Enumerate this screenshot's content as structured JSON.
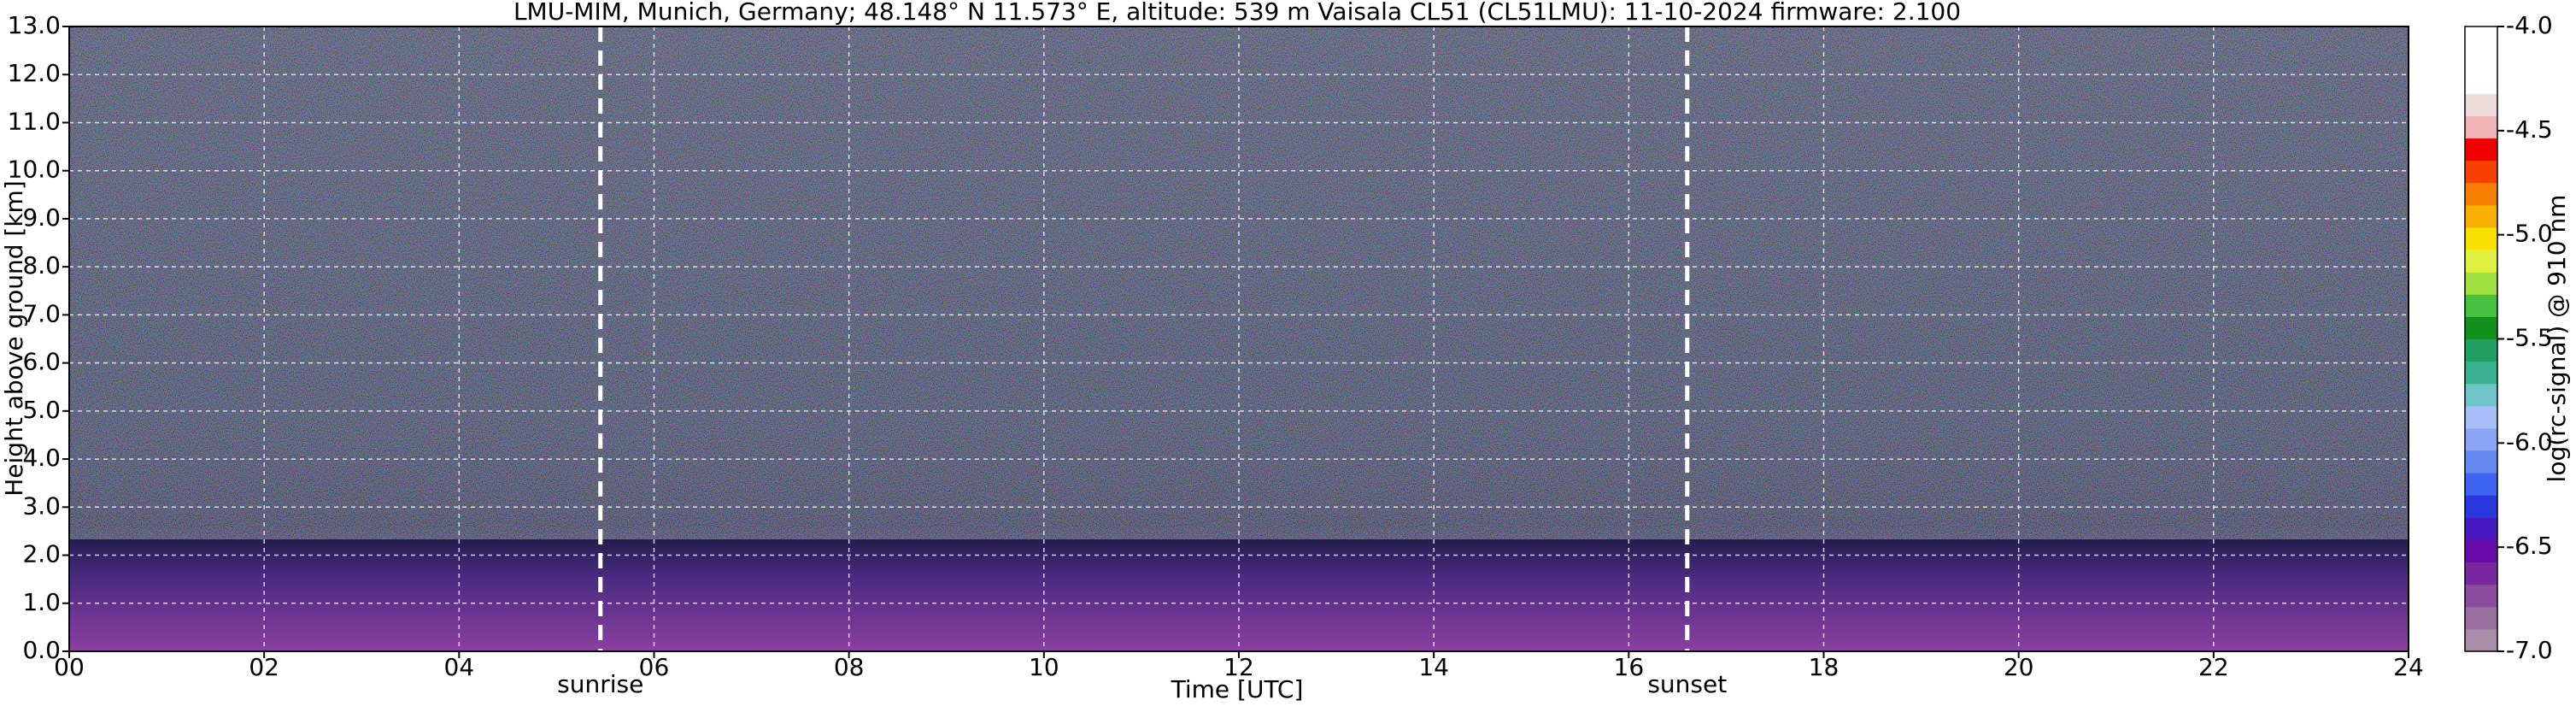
{
  "chart_data": {
    "type": "heatmap",
    "title": "LMU-MIM, Munich, Germany; 48.148° N 11.573° E, altitude: 539 m    Vaisala CL51 (CL51LMU): 11-10-2024    firmware: 2.100",
    "x_label": "Time [UTC]",
    "y_label": "Height above ground [km]",
    "xlim": [
      0,
      24
    ],
    "xticks": [
      {
        "value": 0,
        "label": "00"
      },
      {
        "value": 2,
        "label": "02"
      },
      {
        "value": 4,
        "label": "04"
      },
      {
        "value": 6,
        "label": "06"
      },
      {
        "value": 8,
        "label": "08"
      },
      10,
      12,
      14,
      16,
      18,
      20,
      22,
      24
    ],
    "ylim": [
      0,
      13
    ],
    "yticks": [
      {
        "value": 0,
        "label": "0.0"
      },
      {
        "value": 1,
        "label": "1.0"
      },
      {
        "value": 2,
        "label": "2.0"
      },
      {
        "value": 3,
        "label": "3.0"
      },
      {
        "value": 4,
        "label": "4.0"
      },
      {
        "value": 5,
        "label": "5.0"
      },
      {
        "value": 6,
        "label": "6.0"
      },
      {
        "value": 7,
        "label": "7.0"
      },
      {
        "value": 8,
        "label": "8.0"
      },
      {
        "value": 9,
        "label": "9.0"
      },
      {
        "value": 10,
        "label": "10.0"
      },
      {
        "value": 11,
        "label": "11.0"
      },
      {
        "value": 12,
        "label": "12.0"
      },
      {
        "value": 13,
        "label": "13.0"
      }
    ],
    "grid": true,
    "annotations": [
      {
        "text": "sunrise",
        "x": 5.45
      },
      {
        "text": "sunset",
        "x": 16.6
      }
    ],
    "colorbar": {
      "label": "log(rc-signal) @ 910 nm",
      "lim": [
        -7,
        -4
      ],
      "ticks": [
        {
          "value": -4,
          "label": "-4.0"
        },
        {
          "value": -4.5,
          "label": "-4.5"
        },
        {
          "value": -5,
          "label": "-5.0"
        },
        {
          "value": -5.5,
          "label": "-5.5"
        },
        {
          "value": -6,
          "label": "-6.0"
        },
        {
          "value": -6.5,
          "label": "-6.5"
        },
        {
          "value": -7,
          "label": "-7.0"
        }
      ],
      "colors": [
        "#a88ca8",
        "#9a70a0",
        "#8a4c9c",
        "#7a28a0",
        "#6a08a8",
        "#4818c0",
        "#2a38e0",
        "#3c64f0",
        "#6488f0",
        "#8ca4f4",
        "#a8bcf8",
        "#70c4c8",
        "#38b090",
        "#20a060",
        "#10901c",
        "#48c040",
        "#a0e040",
        "#e0f040",
        "#f8e000",
        "#f8b000",
        "#f88000",
        "#f84000",
        "#f00000",
        "#f0b4b4",
        "#f0dcdc",
        "#ffffff",
        "#ffffff",
        "#ffffff"
      ]
    }
  }
}
